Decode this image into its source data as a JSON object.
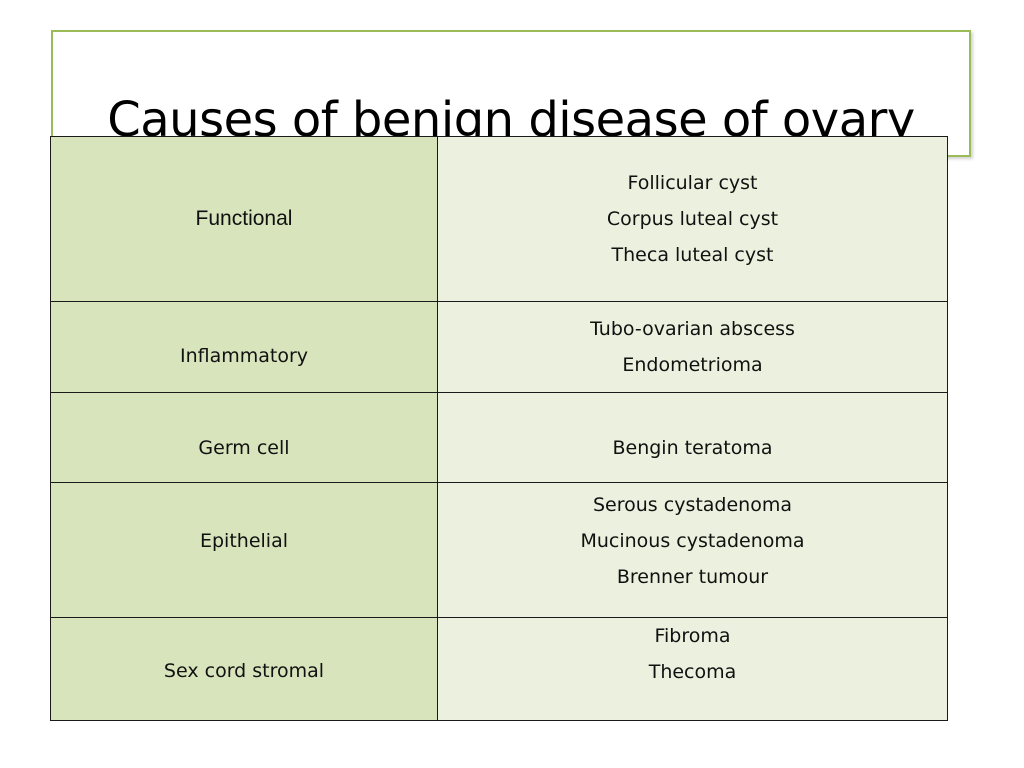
{
  "slide": {
    "title": "Causes of benign disease of ovary"
  },
  "table": {
    "rows": [
      {
        "category": "Functional",
        "items": [
          "Follicular cyst",
          "Corpus luteal cyst",
          "Theca luteal cyst"
        ]
      },
      {
        "category": "Inflammatory",
        "items": [
          "Tubo-ovarian abscess",
          "Endometrioma"
        ]
      },
      {
        "category": "Germ cell",
        "items": [
          "Bengin teratoma"
        ]
      },
      {
        "category": "Epithelial",
        "items": [
          "Serous cystadenoma",
          "Mucinous cystadenoma",
          "Brenner tumour"
        ]
      },
      {
        "category": "Sex cord stromal",
        "items": [
          "Fibroma",
          "Thecoma"
        ]
      }
    ]
  },
  "colors": {
    "title_border": "#9bbb59",
    "category_fill": "#d8e4bc",
    "items_fill": "#ebf1de"
  }
}
